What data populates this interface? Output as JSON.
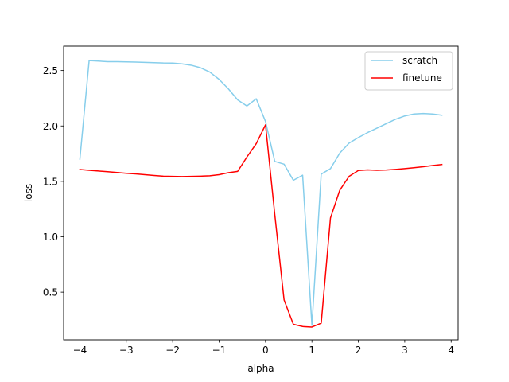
{
  "chart_data": {
    "type": "line",
    "title": "",
    "xlabel": "alpha",
    "ylabel": "loss",
    "xlim": [
      -4.35,
      4.15
    ],
    "ylim": [
      0.07,
      2.72
    ],
    "xticks": [
      -4,
      -3,
      -2,
      -1,
      0,
      1,
      2,
      3,
      4
    ],
    "xtick_labels": [
      "−4",
      "−3",
      "−2",
      "−1",
      "0",
      "1",
      "2",
      "3",
      "4"
    ],
    "yticks": [
      0.5,
      1.0,
      1.5,
      2.0,
      2.5
    ],
    "ytick_labels": [
      "0.5",
      "1.0",
      "1.5",
      "2.0",
      "2.5"
    ],
    "grid": false,
    "legend_position": "top-right",
    "series": [
      {
        "name": "scratch",
        "color": "#87ceeb",
        "x": [
          -4.0,
          -3.8,
          -3.6,
          -3.4,
          -3.2,
          -3.0,
          -2.8,
          -2.6,
          -2.4,
          -2.2,
          -2.0,
          -1.8,
          -1.6,
          -1.4,
          -1.2,
          -1.0,
          -0.8,
          -0.6,
          -0.4,
          -0.2,
          0.0,
          0.2,
          0.4,
          0.6,
          0.8,
          1.0,
          1.2,
          1.4,
          1.6,
          1.8,
          2.0,
          2.2,
          2.4,
          2.6,
          2.8,
          3.0,
          3.2,
          3.4,
          3.6,
          3.8
        ],
        "values": [
          1.7,
          2.59,
          2.585,
          2.58,
          2.58,
          2.578,
          2.576,
          2.574,
          2.571,
          2.568,
          2.567,
          2.56,
          2.548,
          2.525,
          2.486,
          2.42,
          2.335,
          2.235,
          2.18,
          2.245,
          2.04,
          1.68,
          1.655,
          1.51,
          1.555,
          0.2,
          1.565,
          1.615,
          1.755,
          1.845,
          1.895,
          1.94,
          1.98,
          2.02,
          2.06,
          2.09,
          2.108,
          2.112,
          2.108,
          2.097
        ]
      },
      {
        "name": "finetune",
        "color": "#ff0000",
        "x": [
          -4.0,
          -3.8,
          -3.6,
          -3.4,
          -3.2,
          -3.0,
          -2.8,
          -2.6,
          -2.4,
          -2.2,
          -2.0,
          -1.8,
          -1.6,
          -1.4,
          -1.2,
          -1.0,
          -0.8,
          -0.6,
          -0.4,
          -0.2,
          0.0,
          0.2,
          0.4,
          0.6,
          0.8,
          1.0,
          1.2,
          1.4,
          1.6,
          1.8,
          2.0,
          2.2,
          2.4,
          2.6,
          2.8,
          3.0,
          3.2,
          3.4,
          3.6,
          3.8
        ],
        "values": [
          1.607,
          1.6,
          1.593,
          1.587,
          1.58,
          1.573,
          1.567,
          1.56,
          1.553,
          1.547,
          1.545,
          1.543,
          1.545,
          1.547,
          1.55,
          1.56,
          1.578,
          1.59,
          1.72,
          1.84,
          2.01,
          1.2,
          0.43,
          0.21,
          0.19,
          0.185,
          0.22,
          1.17,
          1.42,
          1.545,
          1.598,
          1.603,
          1.6,
          1.602,
          1.608,
          1.615,
          1.623,
          1.632,
          1.643,
          1.652
        ]
      }
    ]
  }
}
